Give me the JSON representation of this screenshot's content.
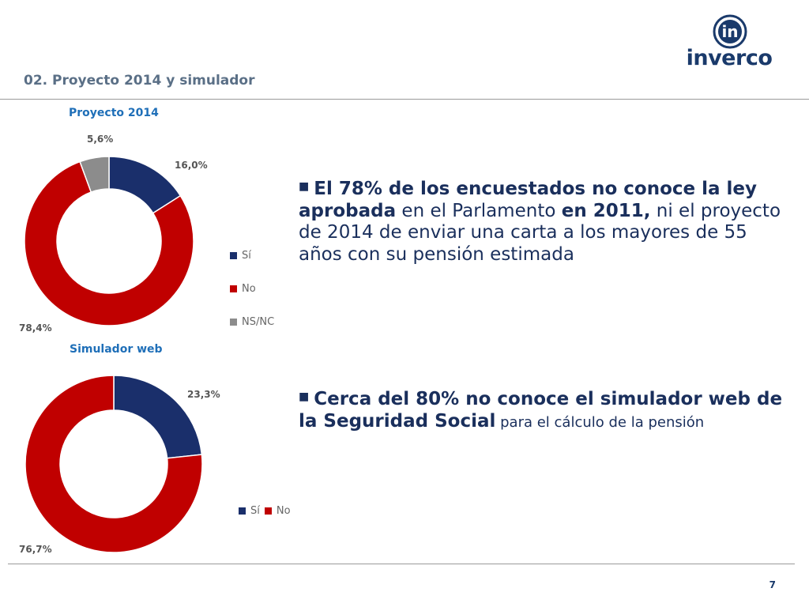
{
  "header": {
    "section_title": "02. Proyecto 2014 y simulador",
    "logo_text": "inverco",
    "logo_icon": "inverco-i-circle-icon"
  },
  "colors": {
    "si": "#1a2f6b",
    "no": "#c00000",
    "nsnc": "#8c8c8c",
    "text_dark": "#1a2f5c",
    "chart_title": "#1f6fb8"
  },
  "chart_data": [
    {
      "type": "pie",
      "variant": "donut",
      "title": "Proyecto 2014",
      "categories": [
        "Sí",
        "No",
        "NS/NC"
      ],
      "values": [
        16.0,
        78.4,
        5.6
      ],
      "labels": [
        "16,0%",
        "78,4%",
        "5,6%"
      ],
      "legend": "right"
    },
    {
      "type": "pie",
      "variant": "donut",
      "title": "Simulador web",
      "categories": [
        "Sí",
        "No"
      ],
      "values": [
        23.3,
        76.7
      ],
      "labels": [
        "23,3%",
        "76,7%"
      ],
      "legend": "bottom-right"
    }
  ],
  "bullets": {
    "first": {
      "bold1": "El 78% de los encuestados no conoce la ley aprobada",
      "text1": " en el Parlamento ",
      "bold2": "en 2011,",
      "text2": " ni el proyecto de 2014 de enviar una carta a los mayores de 55 años con su pensión estimada"
    },
    "second": {
      "bold1": "Cerca del 80% no conoce el simulador web de la Seguridad Social",
      "text1": " para el cálculo de la pensión"
    }
  },
  "footer": {
    "page_number": "7"
  }
}
